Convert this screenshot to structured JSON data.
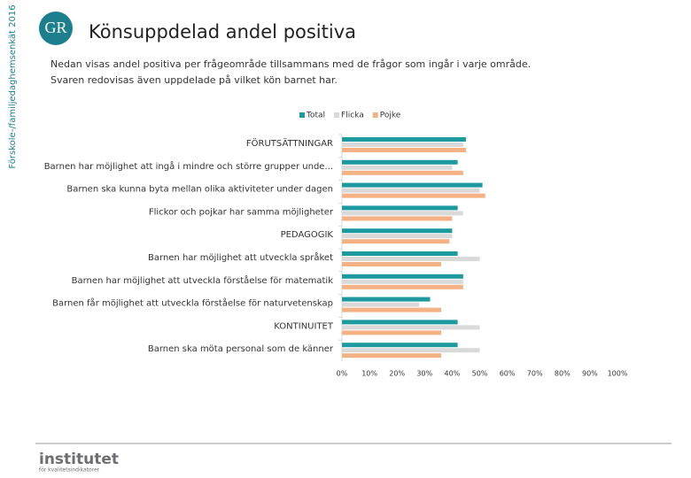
{
  "side_label": "Förskole-/familjedaghemsenkät 2016",
  "logo": "GR",
  "footer": {
    "name": "institutet",
    "tagline": "för kvalitetsindikatorer"
  },
  "chart_data": {
    "type": "bar",
    "orientation": "horizontal",
    "title": "Könsuppdelad andel positiva",
    "subtitle": [
      "Nedan visas andel positiva per frågeområde tillsammans med de frågor som ingår i varje område.",
      "Svaren redovisas även uppdelade på vilket kön barnet har."
    ],
    "categories": [
      "FÖRUTSÄTTNINGAR",
      "Barnen har möjlighet att ingå i mindre och större grupper unde...",
      "Barnen ska kunna byta mellan olika aktiviteter under dagen",
      "Flickor och pojkar har samma möjligheter",
      "PEDAGOGIK",
      "Barnen har möjlighet att utveckla språket",
      "Barnen har möjlighet att utveckla förståelse för matematik",
      "Barnen får möjlighet att utveckla förståelse för naturvetenskap",
      "KONTINUITET",
      "Barnen ska möta personal som de känner"
    ],
    "series": [
      {
        "name": "Total",
        "color": "#1d9aa0",
        "values": [
          45,
          42,
          51,
          42,
          40,
          42,
          44,
          32,
          42,
          42
        ]
      },
      {
        "name": "Flicka",
        "color": "#d9d9d9",
        "values": [
          44,
          40,
          50,
          44,
          40,
          50,
          44,
          28,
          50,
          50
        ]
      },
      {
        "name": "Pojke",
        "color": "#f4b183",
        "values": [
          45,
          44,
          52,
          40,
          39,
          36,
          44,
          36,
          36,
          36
        ]
      }
    ],
    "xlim": [
      0,
      100
    ],
    "xticks": [
      {
        "value": 0,
        "label": "0%"
      },
      {
        "value": 10,
        "label": "10%"
      },
      {
        "value": 20,
        "label": "20%"
      },
      {
        "value": 30,
        "label": "30%"
      },
      {
        "value": 40,
        "label": "40%"
      },
      {
        "value": 50,
        "label": "50%"
      },
      {
        "value": 60,
        "label": "60%"
      },
      {
        "value": 70,
        "label": "70%"
      },
      {
        "value": 80,
        "label": "80%"
      },
      {
        "value": 90,
        "label": "90%"
      },
      {
        "value": 100,
        "label": "100%"
      }
    ],
    "legend": "top"
  }
}
